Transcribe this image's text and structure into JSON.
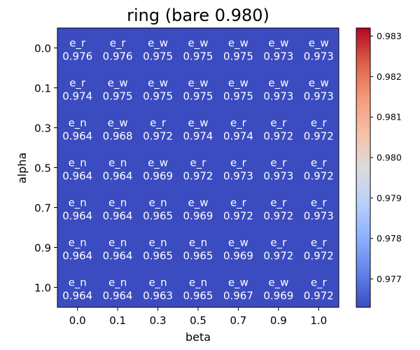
{
  "chart_data": {
    "type": "heatmap",
    "title": "ring (bare 0.980)",
    "xlabel": "beta",
    "ylabel": "alpha",
    "x_ticks": [
      "0.0",
      "0.1",
      "0.3",
      "0.5",
      "0.7",
      "0.9",
      "1.0"
    ],
    "y_ticks": [
      "0.0",
      "0.1",
      "0.3",
      "0.5",
      "0.7",
      "0.9",
      "1.0"
    ],
    "cell_labels": [
      [
        "e_r",
        "e_r",
        "e_w",
        "e_w",
        "e_w",
        "e_w",
        "e_w"
      ],
      [
        "e_r",
        "e_w",
        "e_w",
        "e_w",
        "e_w",
        "e_w",
        "e_w"
      ],
      [
        "e_n",
        "e_w",
        "e_r",
        "e_w",
        "e_r",
        "e_r",
        "e_r"
      ],
      [
        "e_n",
        "e_n",
        "e_w",
        "e_r",
        "e_r",
        "e_r",
        "e_r"
      ],
      [
        "e_n",
        "e_n",
        "e_n",
        "e_w",
        "e_r",
        "e_r",
        "e_r"
      ],
      [
        "e_n",
        "e_n",
        "e_n",
        "e_n",
        "e_w",
        "e_r",
        "e_r"
      ],
      [
        "e_n",
        "e_n",
        "e_n",
        "e_n",
        "e_w",
        "e_w",
        "e_r"
      ]
    ],
    "values": [
      [
        "0.976",
        "0.976",
        "0.975",
        "0.975",
        "0.975",
        "0.973",
        "0.973"
      ],
      [
        "0.974",
        "0.975",
        "0.975",
        "0.975",
        "0.975",
        "0.973",
        "0.973"
      ],
      [
        "0.964",
        "0.968",
        "0.972",
        "0.974",
        "0.974",
        "0.972",
        "0.972"
      ],
      [
        "0.964",
        "0.964",
        "0.969",
        "0.972",
        "0.973",
        "0.973",
        "0.972"
      ],
      [
        "0.964",
        "0.964",
        "0.965",
        "0.969",
        "0.972",
        "0.972",
        "0.973"
      ],
      [
        "0.964",
        "0.964",
        "0.965",
        "0.965",
        "0.969",
        "0.972",
        "0.972"
      ],
      [
        "0.964",
        "0.964",
        "0.963",
        "0.965",
        "0.967",
        "0.969",
        "0.972"
      ]
    ],
    "colormap": "coolwarm",
    "cell_color": "#3b4cc0",
    "colorbar": {
      "ticks": [
        "0.977",
        "0.978",
        "0.979",
        "0.980",
        "0.981",
        "0.982",
        "0.983"
      ],
      "range": [
        0.9763,
        0.9832
      ],
      "colors": [
        "#3b4cc0",
        "#6282ea",
        "#8db0fe",
        "#b9d0f9",
        "#dddcdc",
        "#f6bfa6",
        "#f49a7b",
        "#de6047",
        "#b40426"
      ]
    }
  }
}
